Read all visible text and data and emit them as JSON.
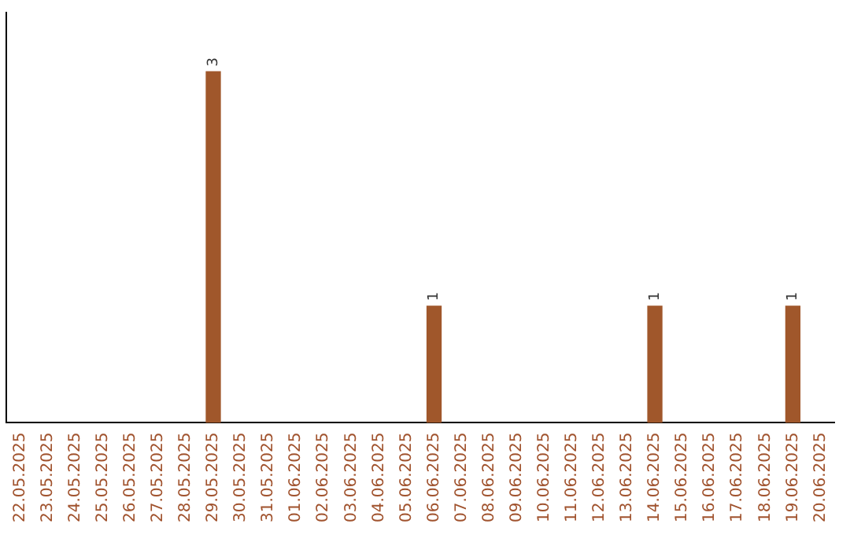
{
  "chart_data": {
    "type": "bar",
    "categories": [
      "22.05.2025",
      "23.05.2025",
      "24.05.2025",
      "25.05.2025",
      "26.05.2025",
      "27.05.2025",
      "28.05.2025",
      "29.05.2025",
      "30.05.2025",
      "31.05.2025",
      "01.06.2025",
      "02.06.2025",
      "03.06.2025",
      "04.06.2025",
      "05.06.2025",
      "06.06.2025",
      "07.06.2025",
      "08.06.2025",
      "09.06.2025",
      "10.06.2025",
      "11.06.2025",
      "12.06.2025",
      "13.06.2025",
      "14.06.2025",
      "15.06.2025",
      "16.06.2025",
      "17.06.2025",
      "18.06.2025",
      "19.06.2025",
      "20.06.2025"
    ],
    "values": [
      0,
      0,
      0,
      0,
      0,
      0,
      0,
      3,
      0,
      0,
      0,
      0,
      0,
      0,
      0,
      1,
      0,
      0,
      0,
      0,
      0,
      0,
      0,
      1,
      0,
      0,
      0,
      0,
      1,
      0
    ],
    "value_labels": [
      null,
      null,
      null,
      null,
      null,
      null,
      null,
      "3",
      null,
      null,
      null,
      null,
      null,
      null,
      null,
      "1",
      null,
      null,
      null,
      null,
      null,
      null,
      null,
      "1",
      null,
      null,
      null,
      null,
      "1",
      null
    ],
    "color": "#a0572b",
    "grid": false,
    "legend": false,
    "tick_labels": "x"
  }
}
